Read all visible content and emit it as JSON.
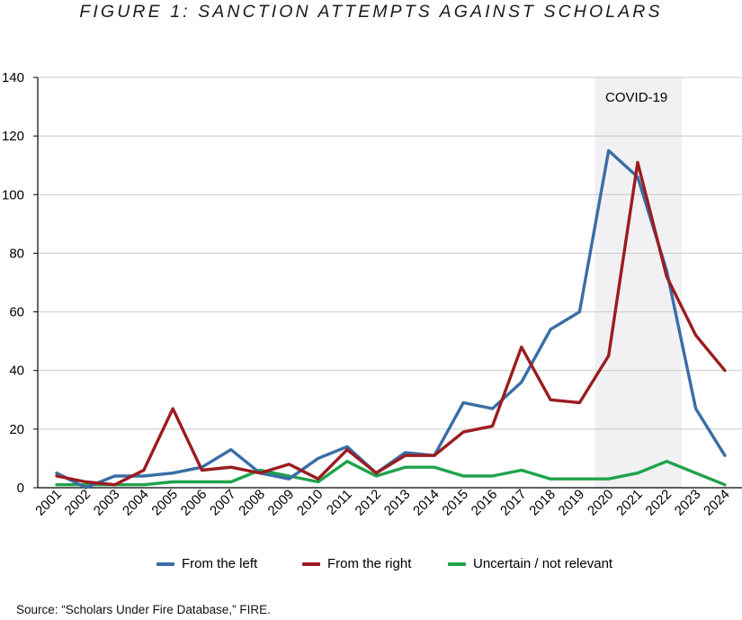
{
  "title": "FIGURE 1: SANCTION ATTEMPTS AGAINST SCHOLARS",
  "source": "Source: “Scholars Under Fire Database,” FIRE.",
  "chart_data": {
    "type": "line",
    "title": "FIGURE 1: SANCTION ATTEMPTS AGAINST SCHOLARS",
    "xlabel": "",
    "ylabel": "",
    "x": [
      "2001",
      "2002",
      "2003",
      "2004",
      "2005",
      "2006",
      "2007",
      "2008",
      "2009",
      "2010",
      "2011",
      "2012",
      "2013",
      "2014",
      "2015",
      "2016",
      "2017",
      "2018",
      "2019",
      "2020",
      "2021",
      "2022",
      "2023",
      "2024"
    ],
    "ylim": [
      0,
      140
    ],
    "yticks": [
      0,
      20,
      40,
      60,
      80,
      100,
      120,
      140
    ],
    "grid": "horizontal",
    "legend_position": "bottom",
    "series": [
      {
        "name": "From the left",
        "color": "#3a6ea5",
        "values": [
          5,
          0,
          4,
          4,
          5,
          7,
          13,
          5,
          3,
          10,
          14,
          5,
          12,
          11,
          29,
          27,
          36,
          54,
          60,
          115,
          106,
          74,
          27,
          11
        ]
      },
      {
        "name": "From the right",
        "color": "#9b1c20",
        "values": [
          4,
          2,
          1,
          6,
          27,
          6,
          7,
          5,
          8,
          3,
          13,
          5,
          11,
          11,
          19,
          21,
          48,
          30,
          29,
          45,
          111,
          72,
          52,
          40
        ]
      },
      {
        "name": "Uncertain / not relevant",
        "color": "#1fa34a",
        "values": [
          1,
          1,
          1,
          1,
          2,
          2,
          2,
          6,
          4,
          2,
          9,
          4,
          7,
          7,
          4,
          4,
          6,
          3,
          3,
          3,
          5,
          9,
          5,
          1
        ]
      }
    ],
    "annotations": [
      {
        "label": "COVID-19",
        "x_start": "2020",
        "x_end": "2023",
        "fill": "#f1f1f3"
      }
    ]
  }
}
